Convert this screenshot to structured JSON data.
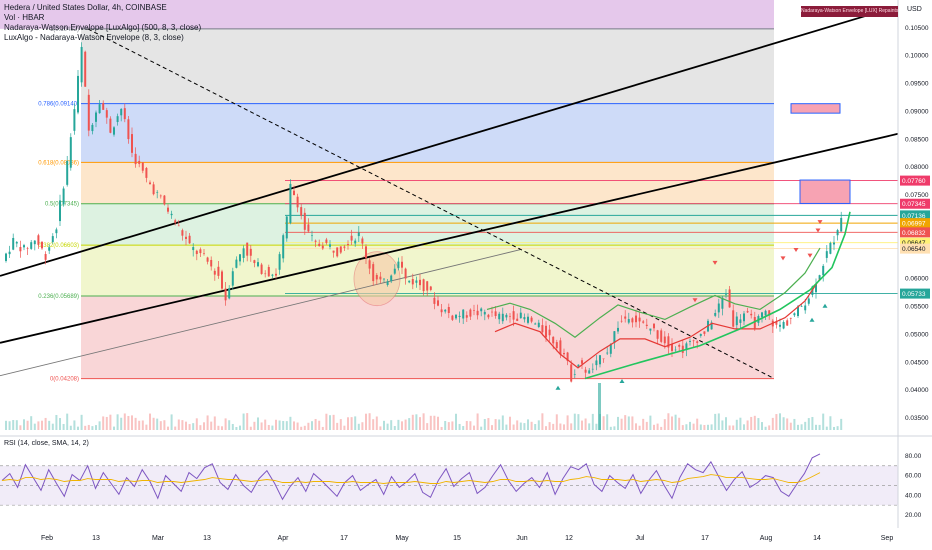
{
  "header": {
    "symbol_line": "Hedera / United States Dollar, 4h, COINBASE",
    "indicators": [
      "Vol · HBAR",
      "Nadaraya-Watson Envelope [LuxAlgo] (500, 8, 3, close)",
      "LuxAlgo - Nadaraya-Watson Envelope (8, 3, close)"
    ],
    "top_right_tag": "Nadaraya-Watson Envelope [LUX] Repaints",
    "currency": "USD"
  },
  "colors": {
    "bull": "#26a69a",
    "bear": "#ef5350",
    "rsi_line": "#7e57c2",
    "rsi_ma": "#f0b400",
    "envelope_upper": "#4caf50",
    "envelope_lower": "#e53935",
    "fib_purple": "#e1bee7",
    "fib_gray": "#e0e0e0",
    "fib_blue": "#c5d5f7",
    "fib_orange": "#fde2c2",
    "fib_green": "#d7f0dc",
    "fib_yellow": "#eef5c4",
    "fib_red": "#f8cfd0"
  },
  "chart_data": [
    {
      "type": "candlestick",
      "title": "Hedera / United States Dollar, 4h, COINBASE",
      "ylabel": "USD",
      "ylim": [
        0.0325,
        0.11
      ],
      "y_ticks": [
        "0.10500",
        "0.10000",
        "0.09500",
        "0.09000",
        "0.08500",
        "0.08000",
        "0.07500",
        "0.06500",
        "0.06000",
        "0.05500",
        "0.05000",
        "0.04500",
        "0.04000",
        "0.03500"
      ],
      "x_ticks": [
        "Feb",
        "13",
        "Mar",
        "13",
        "Apr",
        "17",
        "May",
        "15",
        "Jun",
        "12",
        "Jul",
        "17",
        "Aug",
        "14",
        "Sep"
      ],
      "fib_levels": [
        {
          "label": "1(0.10482)",
          "value": 0.10482
        },
        {
          "label": "0.786(0.09140)",
          "value": 0.0914
        },
        {
          "label": "0.618(0.08086)",
          "value": 0.08086
        },
        {
          "label": "0.5(0.07345)",
          "value": 0.07345
        },
        {
          "label": "0.382(0.06603)",
          "value": 0.06603
        },
        {
          "label": "0.236(0.05689)",
          "value": 0.05689
        },
        {
          "label": "0(0.04208)",
          "value": 0.04208
        }
      ],
      "price_labels": [
        {
          "text": "0.07760",
          "value": 0.0776,
          "color": "#ef3b6a"
        },
        {
          "text": "0.07345",
          "value": 0.07345,
          "color": "#ef3b6a"
        },
        {
          "text": "0.07136",
          "value": 0.07136,
          "color": "#26a69a"
        },
        {
          "text": "01:14:28",
          "value": 0.07,
          "color": "#26a69a"
        },
        {
          "text": "0.06997",
          "value": 0.06997,
          "color": "#f0a500"
        },
        {
          "text": "0.06832",
          "value": 0.06832,
          "color": "#ef5350"
        },
        {
          "text": "0.06647",
          "value": 0.06647,
          "color": "#fff176"
        },
        {
          "text": "0.06540",
          "value": 0.0654,
          "color": "#ffe0b2"
        },
        {
          "text": "0.05733",
          "value": 0.05733,
          "color": "#26a69a"
        }
      ],
      "price_path": [
        [
          0,
          0.0632
        ],
        [
          3,
          0.0668
        ],
        [
          6,
          0.0652
        ],
        [
          9,
          0.0671
        ],
        [
          12,
          0.0642
        ],
        [
          15,
          0.0695
        ],
        [
          18,
          0.0808
        ],
        [
          20,
          0.0905
        ],
        [
          22,
          0.1012
        ],
        [
          24,
          0.0865
        ],
        [
          27,
          0.0922
        ],
        [
          30,
          0.0866
        ],
        [
          33,
          0.0906
        ],
        [
          36,
          0.0825
        ],
        [
          40,
          0.0778
        ],
        [
          44,
          0.0742
        ],
        [
          48,
          0.0702
        ],
        [
          52,
          0.0658
        ],
        [
          56,
          0.0637
        ],
        [
          60,
          0.0606
        ],
        [
          62,
          0.0564
        ],
        [
          64,
          0.0618
        ],
        [
          67,
          0.0658
        ],
        [
          70,
          0.0626
        ],
        [
          73,
          0.0613
        ],
        [
          76,
          0.0609
        ],
        [
          79,
          0.0705
        ],
        [
          80,
          0.0765
        ],
        [
          82,
          0.0737
        ],
        [
          84,
          0.0689
        ],
        [
          87,
          0.0661
        ],
        [
          90,
          0.0662
        ],
        [
          93,
          0.0649
        ],
        [
          96,
          0.0669
        ],
        [
          99,
          0.0678
        ],
        [
          101,
          0.0642
        ],
        [
          103,
          0.0601
        ],
        [
          106,
          0.0591
        ],
        [
          108,
          0.0612
        ],
        [
          110,
          0.0638
        ],
        [
          112,
          0.0598
        ],
        [
          115,
          0.0594
        ],
        [
          118,
          0.0583
        ],
        [
          121,
          0.0551
        ],
        [
          125,
          0.0533
        ],
        [
          130,
          0.0538
        ],
        [
          134,
          0.0539
        ],
        [
          138,
          0.0531
        ],
        [
          142,
          0.0535
        ],
        [
          146,
          0.0527
        ],
        [
          150,
          0.0508
        ],
        [
          153,
          0.0489
        ],
        [
          156,
          0.0465
        ],
        [
          158,
          0.0424
        ],
        [
          160,
          0.0447
        ],
        [
          163,
          0.0431
        ],
        [
          166,
          0.0454
        ],
        [
          168,
          0.0473
        ],
        [
          171,
          0.0517
        ],
        [
          174,
          0.0536
        ],
        [
          177,
          0.0519
        ],
        [
          180,
          0.0512
        ],
        [
          183,
          0.0493
        ],
        [
          186,
          0.0479
        ],
        [
          189,
          0.0474
        ],
        [
          192,
          0.0488
        ],
        [
          195,
          0.0505
        ],
        [
          198,
          0.0538
        ],
        [
          201,
          0.0576
        ],
        [
          203,
          0.0522
        ],
        [
          206,
          0.0538
        ],
        [
          209,
          0.052
        ],
        [
          212,
          0.0538
        ],
        [
          215,
          0.0513
        ],
        [
          218,
          0.0523
        ],
        [
          221,
          0.0543
        ],
        [
          224,
          0.0569
        ],
        [
          227,
          0.0612
        ],
        [
          229,
          0.0645
        ],
        [
          231,
          0.0672
        ],
        [
          233,
          0.0714
        ]
      ],
      "annotations": [
        {
          "type": "box",
          "color": "#f7a3b3",
          "value_top": 0.0914,
          "value_bottom": 0.0897
        },
        {
          "type": "box",
          "color": "#f7a3b3",
          "value_top": 0.0777,
          "value_bottom": 0.0735
        },
        {
          "type": "ellipse",
          "label": "range circle"
        },
        {
          "type": "trendline",
          "style": "dashed"
        },
        {
          "type": "channel",
          "style": "solid"
        }
      ]
    },
    {
      "type": "line",
      "title": "RSI (14, close, SMA, 14, 2)",
      "ylim": [
        15,
        90
      ],
      "y_ticks": [
        "80.00",
        "60.00",
        "40.00",
        "20.00"
      ],
      "levels": [
        70,
        50,
        30
      ],
      "series": [
        {
          "name": "RSI",
          "values": [
            55,
            62,
            48,
            71,
            58,
            45,
            66,
            52,
            39,
            61,
            55,
            70,
            47,
            63,
            52,
            41,
            58,
            49,
            66,
            54,
            37,
            60,
            52,
            44,
            63,
            57,
            68,
            72,
            53,
            46,
            61,
            50,
            43,
            57,
            65,
            52,
            36,
            49,
            58,
            44,
            62,
            55,
            47,
            39,
            53,
            60,
            45,
            51,
            56,
            41,
            59,
            48,
            54,
            62,
            43,
            38,
            55,
            67,
            49,
            57,
            63,
            42,
            48,
            60,
            71,
            55,
            44,
            52,
            58,
            48,
            63,
            41,
            57,
            69,
            66,
            72,
            51,
            44,
            60,
            53,
            47,
            61,
            42,
            55,
            65,
            50,
            37,
            58,
            72,
            66,
            63,
            74,
            59,
            45,
            56,
            64,
            48,
            53,
            60,
            58,
            44,
            39,
            51,
            62,
            78,
            82
          ]
        },
        {
          "name": "MA",
          "values": [
            55,
            56,
            55,
            58,
            58,
            56,
            57,
            56,
            54,
            55,
            55,
            57,
            56,
            56,
            56,
            54,
            55,
            54,
            55,
            55,
            53,
            54,
            54,
            53,
            54,
            55,
            56,
            58,
            57,
            56,
            56,
            55,
            54,
            55,
            56,
            55,
            53,
            53,
            54,
            53,
            54,
            54,
            54,
            53,
            53,
            54,
            53,
            53,
            53,
            52,
            53,
            53,
            53,
            54,
            53,
            52,
            52,
            54,
            53,
            54,
            55,
            54,
            53,
            54,
            56,
            56,
            54,
            54,
            55,
            54,
            55,
            54,
            54,
            56,
            57,
            59,
            58,
            56,
            56,
            56,
            55,
            56,
            54,
            55,
            56,
            55,
            53,
            54,
            57,
            58,
            59,
            61,
            60,
            58,
            58,
            58,
            57,
            56,
            56,
            57,
            55,
            53,
            53,
            55,
            59,
            63
          ]
        }
      ]
    }
  ]
}
